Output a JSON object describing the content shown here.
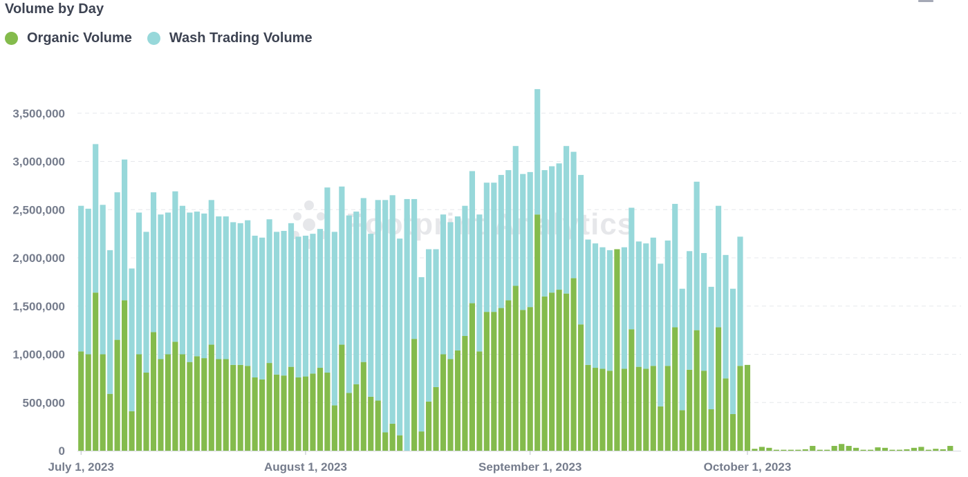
{
  "title": "Volume by Day",
  "colors": {
    "organic": "#84bb4c",
    "wash": "#97d8da",
    "grid": "#e6e8ec",
    "text": "#757c8c"
  },
  "watermark": "Footprint Analytics",
  "chart_data": {
    "type": "bar",
    "stacked": true,
    "title": "Volume by Day",
    "legend": {
      "position": "top-left",
      "entries": [
        "Organic Volume",
        "Wash Trading Volume"
      ]
    },
    "x_start": "2023-07-01",
    "x_end": "2023-10-30",
    "xticks": [
      {
        "label": "July 1, 2023",
        "date": "2023-07-01"
      },
      {
        "label": "August 1, 2023",
        "date": "2023-08-01"
      },
      {
        "label": "September 1, 2023",
        "date": "2023-09-01"
      },
      {
        "label": "October 1, 2023",
        "date": "2023-10-01"
      }
    ],
    "ylim": [
      0,
      3900000
    ],
    "yticks": [
      {
        "value": 0,
        "label": "0"
      },
      {
        "value": 500000,
        "label": "500,000"
      },
      {
        "value": 1000000,
        "label": "1,000,000"
      },
      {
        "value": 1500000,
        "label": "1,500,000"
      },
      {
        "value": 2000000,
        "label": "2,000,000"
      },
      {
        "value": 2500000,
        "label": "2,500,000"
      },
      {
        "value": 3000000,
        "label": "3,000,000"
      },
      {
        "value": 3500000,
        "label": "3,500,000"
      }
    ],
    "grid": true,
    "series": [
      {
        "name": "Organic Volume",
        "color": "#84bb4c",
        "values": [
          1030000,
          1000000,
          1640000,
          1000000,
          590000,
          1150000,
          1560000,
          410000,
          1000000,
          810000,
          1230000,
          950000,
          1000000,
          1130000,
          1000000,
          920000,
          980000,
          960000,
          1100000,
          950000,
          950000,
          890000,
          890000,
          880000,
          760000,
          740000,
          910000,
          790000,
          780000,
          870000,
          760000,
          770000,
          800000,
          860000,
          810000,
          470000,
          1100000,
          600000,
          690000,
          920000,
          560000,
          520000,
          190000,
          280000,
          160000,
          0,
          1160000,
          200000,
          510000,
          660000,
          1000000,
          950000,
          1040000,
          1190000,
          1530000,
          1030000,
          1440000,
          1440000,
          1480000,
          1560000,
          1710000,
          1460000,
          1490000,
          2450000,
          1600000,
          1640000,
          1670000,
          1630000,
          1790000,
          1310000,
          890000,
          860000,
          850000,
          830000,
          2090000,
          850000,
          1260000,
          870000,
          850000,
          880000,
          460000,
          880000,
          1280000,
          420000,
          840000,
          1250000,
          830000,
          430000,
          1280000,
          750000,
          380000,
          880000,
          890000,
          20000,
          40000,
          30000,
          10000,
          10000,
          10000,
          10000,
          15000,
          50000,
          10000,
          10000,
          50000,
          70000,
          50000,
          30000,
          10000,
          10000,
          35000,
          30000,
          10000,
          10000,
          15000,
          30000,
          40000,
          10000,
          20000,
          15000,
          50000
        ],
        "labels": []
      },
      {
        "name": "Wash Trading Volume",
        "color": "#97d8da",
        "values": [
          1510000,
          1510000,
          1540000,
          1550000,
          1490000,
          1530000,
          1460000,
          1480000,
          1470000,
          1460000,
          1450000,
          1500000,
          1470000,
          1560000,
          1540000,
          1550000,
          1500000,
          1500000,
          1500000,
          1480000,
          1480000,
          1480000,
          1470000,
          1510000,
          1470000,
          1470000,
          1490000,
          1480000,
          1500000,
          1490000,
          1460000,
          1460000,
          1450000,
          1440000,
          1920000,
          1800000,
          1640000,
          1840000,
          1790000,
          1700000,
          1690000,
          2080000,
          2410000,
          2370000,
          2040000,
          2610000,
          1450000,
          1600000,
          1580000,
          1430000,
          1450000,
          1420000,
          1390000,
          1350000,
          1370000,
          1420000,
          1340000,
          1340000,
          1380000,
          1350000,
          1450000,
          1410000,
          1400000,
          1300000,
          1310000,
          1310000,
          1310000,
          1530000,
          1310000,
          1550000,
          1300000,
          1290000,
          1260000,
          1250000,
          0,
          1260000,
          1260000,
          1300000,
          1300000,
          1330000,
          1480000,
          1300000,
          1280000,
          1260000,
          1230000,
          1540000,
          1220000,
          1270000,
          1260000,
          1280000,
          1300000,
          1340000,
          0,
          0,
          0,
          0,
          0,
          0,
          0,
          0,
          0,
          0,
          0,
          0,
          0,
          0,
          0,
          0,
          0,
          0,
          0,
          0,
          0,
          0,
          0,
          0,
          0,
          0,
          0,
          0,
          0
        ]
      }
    ]
  }
}
